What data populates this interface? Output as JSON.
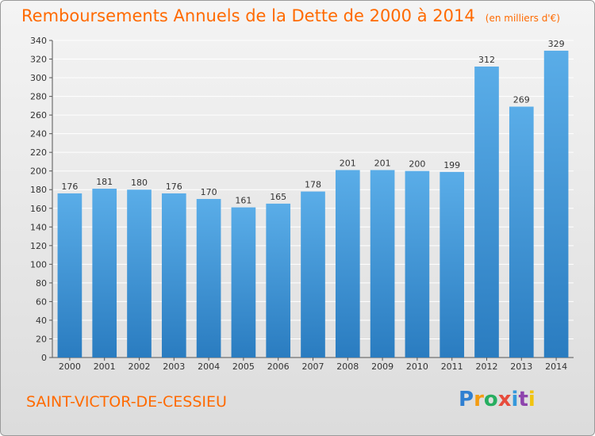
{
  "header": {
    "title": "Remboursements Annuels de la Dette de 2000 à 2014",
    "unit": "(en milliers d'€)"
  },
  "footer": {
    "commune": "SAINT-VICTOR-DE-CESSIEU",
    "logo_text": "Proxiti"
  },
  "colors": {
    "accent": "#ff6a00",
    "bar_top": "#5aade8",
    "bar_bottom": "#2a7cc0",
    "grid": "#ffffff"
  },
  "chart_data": {
    "type": "bar",
    "title": "Remboursements Annuels de la Dette de 2000 à 2014",
    "subtitle": "(en milliers d'€)",
    "xlabel": "",
    "ylabel": "",
    "categories": [
      "2000",
      "2001",
      "2002",
      "2003",
      "2004",
      "2005",
      "2006",
      "2007",
      "2008",
      "2009",
      "2010",
      "2011",
      "2012",
      "2013",
      "2014"
    ],
    "values": [
      176,
      181,
      180,
      176,
      170,
      161,
      165,
      178,
      201,
      201,
      200,
      199,
      312,
      269,
      329
    ],
    "ylim": [
      0,
      340
    ],
    "yticks": [
      0,
      20,
      40,
      60,
      80,
      100,
      120,
      140,
      160,
      180,
      200,
      220,
      240,
      260,
      280,
      300,
      320,
      340
    ],
    "grid": true,
    "legend": "none"
  }
}
